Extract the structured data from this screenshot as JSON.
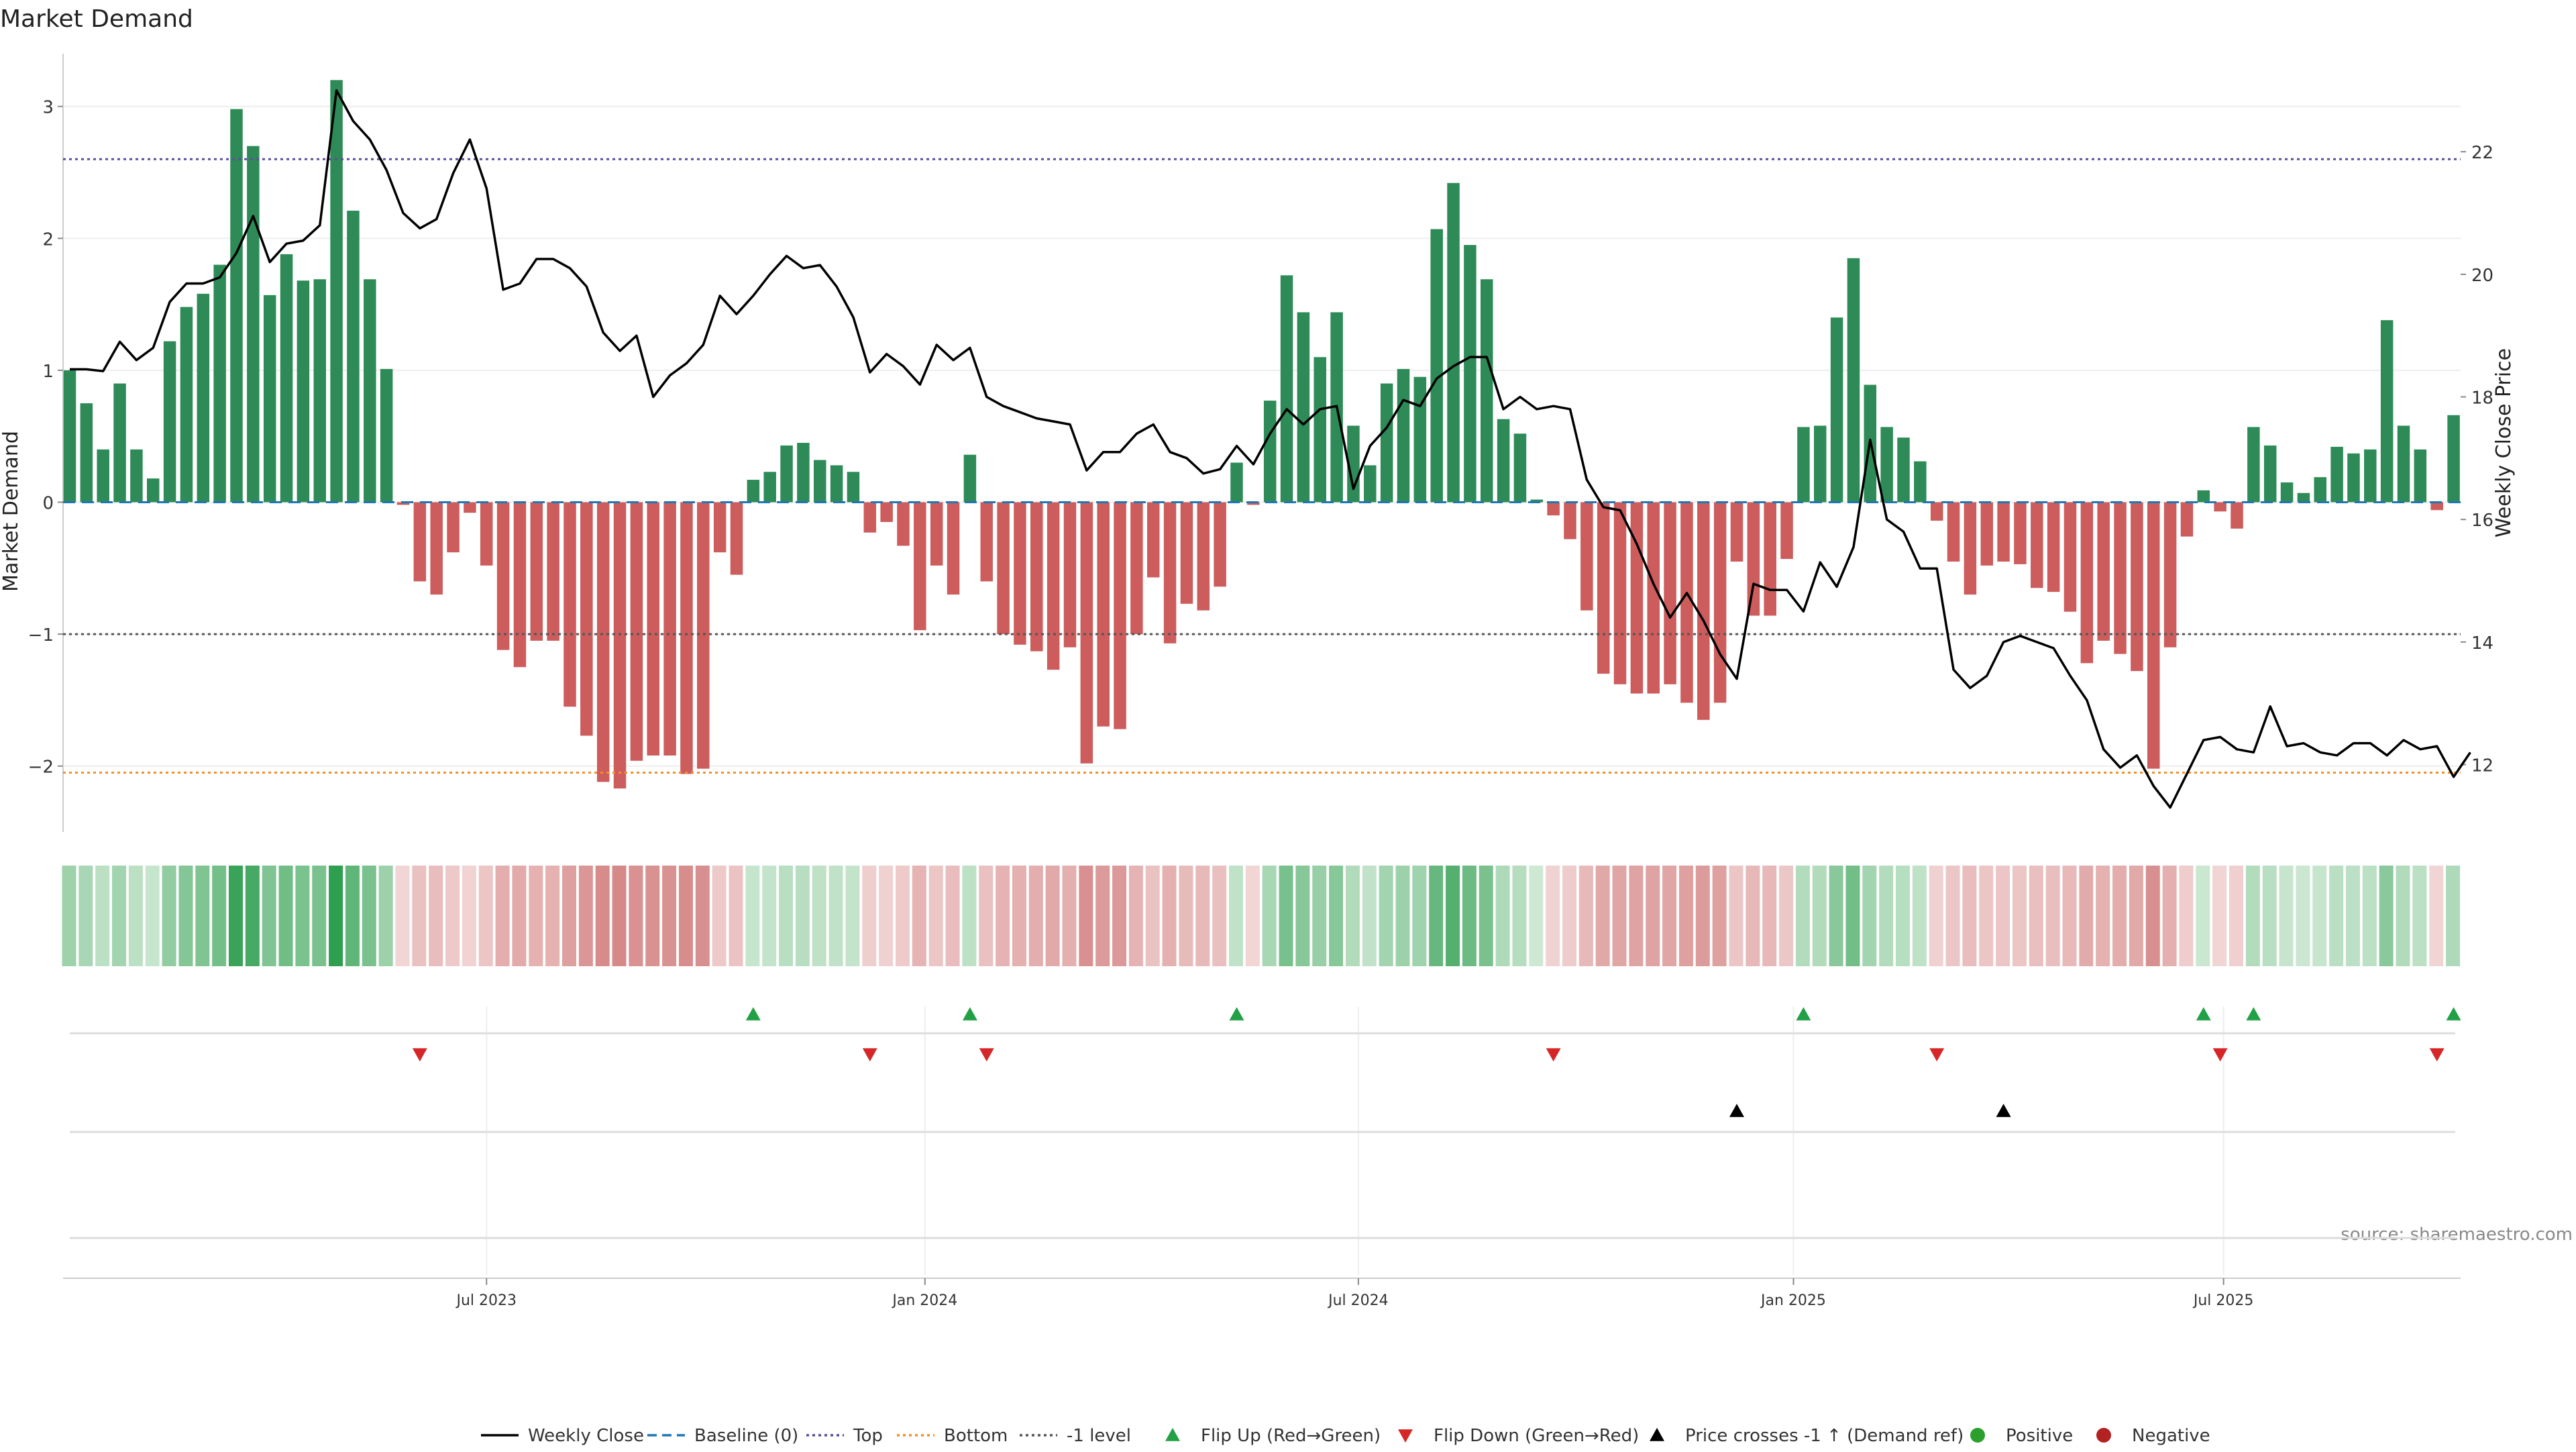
{
  "chart_data": {
    "type": "bar",
    "title": "Market Demand",
    "ylabel": "Market Demand",
    "y2label": "Weekly Close Price",
    "ylim": [
      -2.5,
      3.4
    ],
    "y2lim": [
      10.9,
      23.6
    ],
    "yticks": [
      -2,
      -1,
      0,
      1,
      2,
      3
    ],
    "ytick_labels": [
      "−2",
      "−1",
      "0",
      "1",
      "2",
      "3"
    ],
    "y2ticks": [
      12,
      14,
      16,
      18,
      20,
      22
    ],
    "x_start": "2023-01-06",
    "x_end": "2025-10-31",
    "xticks": [
      {
        "label": "Jul 2023",
        "index": 25
      },
      {
        "label": "Jan 2024",
        "index": 51.3
      },
      {
        "label": "Jul 2024",
        "index": 77.3
      },
      {
        "label": "Jan 2025",
        "index": 103.4
      },
      {
        "label": "Jul 2025",
        "index": 129.2
      }
    ],
    "reference_lines": {
      "top": 2.6,
      "bottom": -2.05,
      "minus_one": -1,
      "baseline": 0
    },
    "demand": [
      1.0,
      0.75,
      0.4,
      0.9,
      0.4,
      0.18,
      1.22,
      1.48,
      1.58,
      1.8,
      2.98,
      2.7,
      1.57,
      1.88,
      1.68,
      1.69,
      3.2,
      2.21,
      1.69,
      1.01,
      -0.02,
      -0.6,
      -0.7,
      -0.38,
      -0.08,
      -0.48,
      -1.12,
      -1.25,
      -1.05,
      -1.05,
      -1.55,
      -1.77,
      -2.12,
      -2.17,
      -1.96,
      -1.92,
      -1.92,
      -2.06,
      -2.02,
      -0.38,
      -0.55,
      0.17,
      0.23,
      0.43,
      0.45,
      0.32,
      0.28,
      0.23,
      -0.23,
      -0.15,
      -0.33,
      -0.97,
      -0.48,
      -0.7,
      0.36,
      -0.6,
      -1.0,
      -1.08,
      -1.13,
      -1.27,
      -1.1,
      -1.98,
      -1.7,
      -1.72,
      -1.0,
      -0.57,
      -1.07,
      -0.77,
      -0.82,
      -0.64,
      0.3,
      -0.02,
      0.77,
      1.72,
      1.44,
      1.1,
      1.44,
      0.58,
      0.28,
      0.9,
      1.01,
      0.95,
      2.07,
      2.42,
      1.95,
      1.69,
      0.63,
      0.52,
      0.02,
      -0.1,
      -0.28,
      -0.82,
      -1.3,
      -1.38,
      -1.45,
      -1.45,
      -1.38,
      -1.52,
      -1.65,
      -1.52,
      -0.45,
      -0.86,
      -0.86,
      -0.43,
      0.57,
      0.58,
      1.4,
      1.85,
      0.89,
      0.57,
      0.49,
      0.31,
      -0.14,
      -0.45,
      -0.7,
      -0.48,
      -0.45,
      -0.47,
      -0.65,
      -0.68,
      -0.83,
      -1.22,
      -1.05,
      -1.15,
      -1.28,
      -2.02,
      -1.1,
      -0.26,
      0.09,
      -0.07,
      -0.2,
      0.57,
      0.43,
      0.15,
      0.07,
      0.19,
      0.42,
      0.37,
      0.4,
      1.38,
      0.58,
      0.4,
      -0.06,
      0.66
    ],
    "price": [
      18.45,
      18.45,
      18.42,
      18.9,
      18.6,
      18.8,
      19.55,
      19.85,
      19.85,
      19.95,
      20.35,
      20.95,
      20.2,
      20.5,
      20.55,
      20.8,
      23.0,
      22.5,
      22.2,
      21.7,
      21.0,
      20.75,
      20.9,
      21.65,
      22.2,
      21.4,
      19.75,
      19.85,
      20.25,
      20.25,
      20.1,
      19.8,
      19.05,
      18.75,
      19.0,
      18.0,
      18.35,
      18.55,
      18.85,
      19.65,
      19.35,
      19.65,
      20.0,
      20.3,
      20.1,
      20.15,
      19.8,
      19.3,
      18.4,
      18.7,
      18.5,
      18.2,
      18.85,
      18.6,
      18.8,
      18.0,
      17.85,
      17.75,
      17.65,
      17.6,
      17.55,
      16.8,
      17.1,
      17.1,
      17.4,
      17.55,
      17.1,
      17.0,
      16.75,
      16.82,
      17.2,
      16.9,
      17.4,
      17.8,
      17.55,
      17.8,
      17.85,
      16.5,
      17.2,
      17.5,
      17.95,
      17.85,
      18.3,
      18.5,
      18.65,
      18.65,
      17.8,
      18.0,
      17.8,
      17.85,
      17.8,
      16.65,
      16.2,
      16.15,
      15.6,
      14.95,
      14.4,
      14.8,
      14.35,
      13.8,
      13.4,
      14.95,
      14.85,
      14.85,
      14.5,
      15.3,
      14.9,
      15.55,
      17.3,
      16.0,
      15.8,
      15.2,
      15.2,
      13.55,
      13.25,
      13.45,
      14.0,
      14.1,
      14.0,
      13.9,
      13.45,
      13.05,
      12.25,
      11.95,
      12.15,
      11.65,
      11.3,
      11.85,
      12.4,
      12.45,
      12.25,
      12.2,
      12.95,
      12.3,
      12.35,
      12.2,
      12.15,
      12.35,
      12.35,
      12.15,
      12.4,
      12.25,
      12.3,
      11.8,
      12.2
    ],
    "heat_strip": "weekly shading by demand sign and magnitude",
    "flip_up": [
      41,
      54,
      70,
      104,
      128,
      131,
      143
    ],
    "flip_down": [
      21,
      48,
      55,
      89,
      112,
      129,
      142
    ],
    "price_cross_up": [
      100,
      116
    ],
    "colors": {
      "positive_bar": "#2e8b57",
      "negative_bar": "#cd5c5c",
      "price_line": "#000000",
      "baseline": "#1f77b4",
      "top": "#5b4e9a",
      "bottom": "#f28e2b",
      "minus_one": "#555555",
      "flip_up": "#22a045",
      "flip_down": "#d62728",
      "cross_up": "#000000",
      "positive_dot": "#2ca02c",
      "negative_dot": "#b22222",
      "strip_pos_dark": "#2e9e4f",
      "strip_pos_light": "#cfe9d4",
      "strip_neg_dark": "#c96565",
      "strip_neg_light": "#f2d6d6"
    },
    "legend": [
      {
        "label": "Weekly Close",
        "kind": "line"
      },
      {
        "label": "Baseline (0)",
        "kind": "dash"
      },
      {
        "label": "Top",
        "kind": "dot"
      },
      {
        "label": "Bottom",
        "kind": "dot-orange"
      },
      {
        "label": "-1 level",
        "kind": "dot-gray"
      },
      {
        "label": "Flip Up (Red→Green)",
        "kind": "tri-up-green"
      },
      {
        "label": "Flip Down (Green→Red)",
        "kind": "tri-down-red"
      },
      {
        "label": "Price crosses -1 ↑ (Demand ref)",
        "kind": "tri-up-black"
      },
      {
        "label": "Positive",
        "kind": "dot-green"
      },
      {
        "label": "Negative",
        "kind": "dot-red"
      }
    ],
    "source": "source: sharemaestro.com"
  }
}
